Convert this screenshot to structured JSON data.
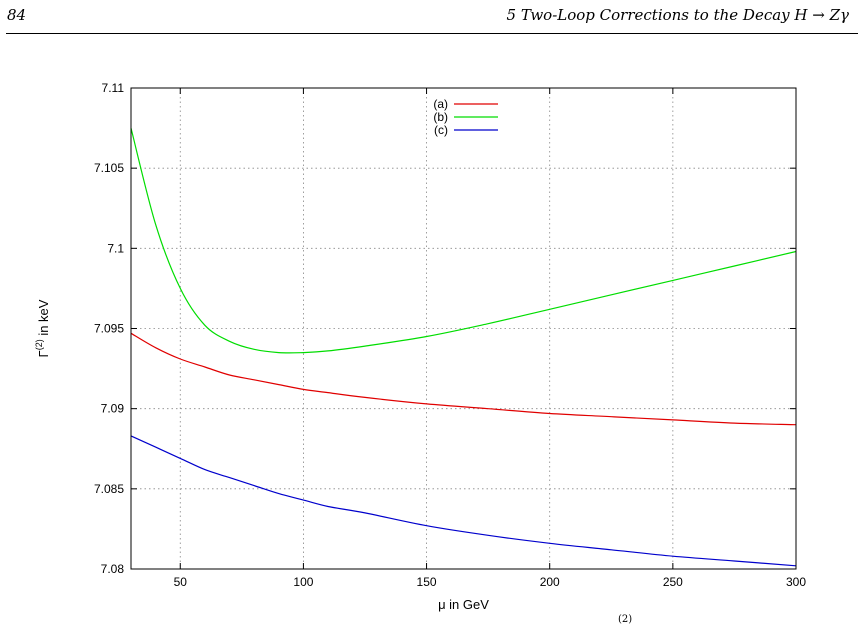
{
  "page": {
    "number": "84",
    "running_title": "5 Two-Loop Corrections to the Decay H → Zγ",
    "caption_fragment": "(2)"
  },
  "chart_data": {
    "type": "line",
    "xlabel": "μ in GeV",
    "ylabel": "Γ⁽²⁾ in keV",
    "xlim": [
      30,
      300
    ],
    "ylim": [
      7.08,
      7.11
    ],
    "xticks": [
      "50",
      "100",
      "150",
      "200",
      "250",
      "300"
    ],
    "yticks": [
      "7.08",
      "7.085",
      "7.09",
      "7.095",
      "7.1",
      "7.105",
      "7.11"
    ],
    "grid": true,
    "legend_position": "top-center",
    "x": [
      30,
      40,
      50,
      60,
      70,
      80,
      90,
      100,
      110,
      125,
      150,
      175,
      200,
      225,
      250,
      275,
      300
    ],
    "series": [
      {
        "name": "(a)",
        "color": "#e00000",
        "values": [
          7.0947,
          7.0938,
          7.0931,
          7.0926,
          7.0921,
          7.0918,
          7.0915,
          7.0912,
          7.091,
          7.0907,
          7.0903,
          7.09,
          7.0897,
          7.0895,
          7.0893,
          7.0891,
          7.089
        ]
      },
      {
        "name": "(b)",
        "color": "#00dd00",
        "values": [
          7.1075,
          7.1015,
          7.0975,
          7.0952,
          7.0942,
          7.0937,
          7.0935,
          7.0935,
          7.0936,
          7.0939,
          7.0945,
          7.0953,
          7.0962,
          7.0971,
          7.098,
          7.0989,
          7.0998
        ]
      },
      {
        "name": "(c)",
        "color": "#0000cc",
        "values": [
          7.0883,
          7.0876,
          7.0869,
          7.0862,
          7.0857,
          7.0852,
          7.0847,
          7.0843,
          7.0839,
          7.0835,
          7.0827,
          7.0821,
          7.0816,
          7.0812,
          7.0808,
          7.0805,
          7.0802
        ]
      }
    ]
  }
}
